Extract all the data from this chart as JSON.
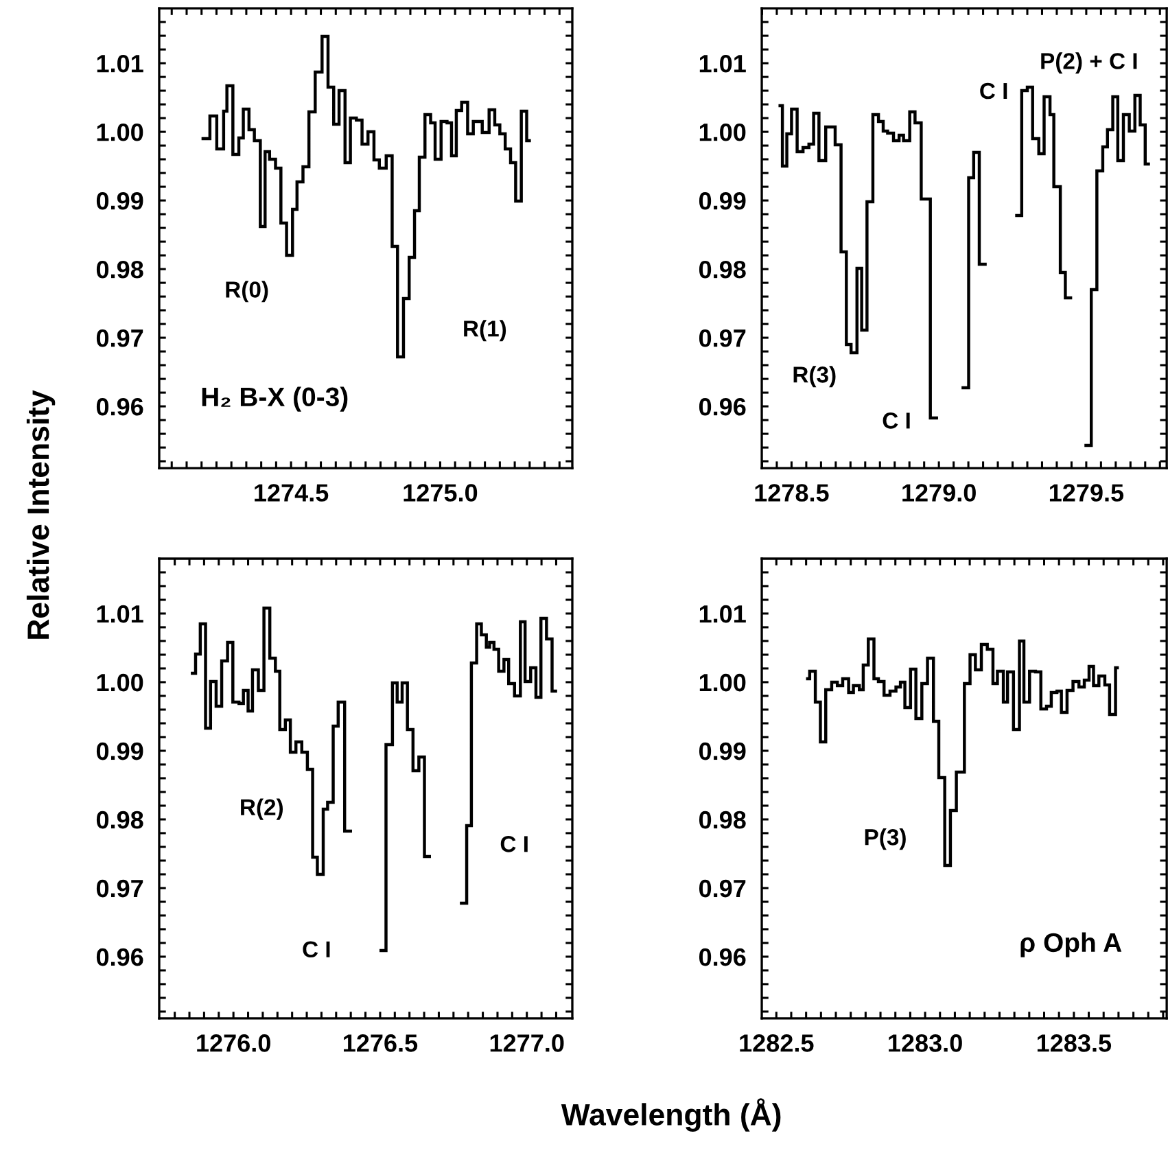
{
  "chart_data": [
    {
      "type": "step",
      "color": "#000000",
      "x": [
        1274.205,
        1274.228,
        1274.251,
        1274.274,
        1274.285,
        1274.305,
        1274.325,
        1274.34,
        1274.359,
        1274.377,
        1274.397,
        1274.413,
        1274.428,
        1274.448,
        1274.466,
        1274.485,
        1274.505,
        1274.52,
        1274.54,
        1274.56,
        1274.581,
        1274.604,
        1274.624,
        1274.643,
        1274.661,
        1274.681,
        1274.699,
        1274.719,
        1274.738,
        1274.758,
        1274.778,
        1274.796,
        1274.819,
        1274.839,
        1274.857,
        1274.877,
        1274.896,
        1274.914,
        1274.93,
        1274.949,
        1274.968,
        1274.983,
        1275.003,
        1275.023,
        1275.038,
        1275.054,
        1275.072,
        1275.092,
        1275.111,
        1275.141,
        1275.164,
        1275.183,
        1275.2,
        1275.218,
        1275.236,
        1275.253,
        1275.272,
        1275.29,
        1275.299
      ],
      "values": [
        0.999,
        1.0023,
        0.9975,
        1.003,
        1.0067,
        0.9967,
        0.9991,
        1.0033,
        1.0003,
        0.9987,
        0.9862,
        0.9971,
        0.996,
        0.9947,
        0.9867,
        0.982,
        0.9887,
        0.9927,
        0.9949,
        1.0029,
        1.0087,
        1.0139,
        1.0065,
        1.0011,
        1.006,
        0.9955,
        1.002,
        1.0017,
        0.9982,
        1.0,
        0.9959,
        0.9947,
        0.9965,
        0.9833,
        0.9672,
        0.9757,
        0.9817,
        0.9885,
        0.9963,
        1.0025,
        1.0013,
        0.996,
        1.0015,
        1.0013,
        0.9965,
        1.0031,
        1.0043,
        0.9997,
        1.0015,
        0.9999,
        1.0032,
        1.001,
        0.9997,
        0.9975,
        0.9955,
        0.9899,
        1.003,
        0.9987,
        0.9987
      ],
      "xlim": [
        1274.058,
        1275.443
      ],
      "ylim": [
        0.951,
        1.018
      ],
      "xticks": [
        {
          "value": 1274.1,
          "label": null
        },
        {
          "value": 1274.15,
          "label": null
        },
        {
          "value": 1274.2,
          "label": null
        },
        {
          "value": 1274.25,
          "label": null
        },
        {
          "value": 1274.3,
          "label": null
        },
        {
          "value": 1274.35,
          "label": null
        },
        {
          "value": 1274.4,
          "label": null
        },
        {
          "value": 1274.45,
          "label": null
        },
        1274.5,
        {
          "value": 1274.55,
          "label": null
        },
        {
          "value": 1274.6,
          "label": null
        },
        {
          "value": 1274.65,
          "label": null
        },
        {
          "value": 1274.7,
          "label": null
        },
        {
          "value": 1274.75,
          "label": null
        },
        {
          "value": 1274.8,
          "label": null
        },
        {
          "value": 1274.85,
          "label": null
        },
        {
          "value": 1274.9,
          "label": null
        },
        {
          "value": 1274.95,
          "label": null
        },
        {
          "value": 1275.0,
          "label": "1275.0"
        },
        {
          "value": 1275.05,
          "label": null
        },
        {
          "value": 1275.1,
          "label": null
        },
        {
          "value": 1275.15,
          "label": null
        },
        {
          "value": 1275.2,
          "label": null
        },
        {
          "value": 1275.25,
          "label": null
        },
        {
          "value": 1275.3,
          "label": null
        },
        {
          "value": 1275.35,
          "label": null
        },
        {
          "value": 1275.4,
          "label": null
        }
      ],
      "yticks": [
        {
          "value": 0.952,
          "label": null
        },
        {
          "value": 0.954,
          "label": null
        },
        {
          "value": 0.956,
          "label": null
        },
        {
          "value": 0.958,
          "label": null
        },
        0.96,
        {
          "value": 0.962,
          "label": null
        },
        {
          "value": 0.964,
          "label": null
        },
        {
          "value": 0.966,
          "label": null
        },
        {
          "value": 0.968,
          "label": null
        },
        0.97,
        {
          "value": 0.972,
          "label": null
        },
        {
          "value": 0.974,
          "label": null
        },
        {
          "value": 0.976,
          "label": null
        },
        {
          "value": 0.978,
          "label": null
        },
        0.98,
        {
          "value": 0.982,
          "label": null
        },
        {
          "value": 0.984,
          "label": null
        },
        {
          "value": 0.986,
          "label": null
        },
        {
          "value": 0.988,
          "label": null
        },
        0.99,
        {
          "value": 0.992,
          "label": null
        },
        {
          "value": 0.994,
          "label": null
        },
        {
          "value": 0.996,
          "label": null
        },
        {
          "value": 0.998,
          "label": null
        },
        {
          "value": 1.0,
          "label": "1.00"
        },
        {
          "value": 1.002,
          "label": null
        },
        {
          "value": 1.004,
          "label": null
        },
        {
          "value": 1.006,
          "label": null
        },
        {
          "value": 1.008,
          "label": null
        },
        1.01,
        {
          "value": 1.012,
          "label": null
        },
        {
          "value": 1.014,
          "label": null
        },
        {
          "value": 1.016,
          "label": null
        }
      ],
      "ylabel": "Relative Intensity",
      "annotations": [
        "R(0)",
        "R(1)",
        "H₂ B-X (0-3)"
      ]
    },
    {
      "type": "step",
      "color": "#000000",
      "x": [
        1278.461,
        1278.469,
        1278.484,
        1278.5,
        1278.519,
        1278.539,
        1278.559,
        1278.575,
        1278.593,
        1278.616,
        1278.648,
        1278.668,
        1278.686,
        1278.702,
        1278.722,
        1278.738,
        1278.756,
        1278.776,
        1278.795,
        1278.811,
        1278.826,
        1278.846,
        1278.865,
        1278.88,
        1278.901,
        1278.919,
        1278.94,
        1278.971,
        1278.992,
        1279.082,
        1279.101,
        1279.118,
        1279.137,
        1279.157,
        1279.264,
        1279.281,
        1279.3,
        1279.318,
        1279.339,
        1279.357,
        1279.377,
        1279.39,
        1279.412,
        1279.429,
        1279.447,
        1279.499,
        1279.517,
        1279.536,
        1279.556,
        1279.572,
        1279.59,
        1279.607,
        1279.626,
        1279.646,
        1279.665,
        1279.683,
        1279.7,
        1279.711
      ],
      "values": [
        1.0038,
        0.995,
        0.9997,
        1.0033,
        0.9971,
        0.9977,
        0.9982,
        1.0027,
        0.9958,
        1.0007,
        0.9981,
        0.9825,
        0.969,
        0.9678,
        0.9801,
        0.9711,
        0.9898,
        1.0025,
        1.0015,
        1.0001,
        0.9998,
        0.9987,
        0.9995,
        0.9987,
        1.0029,
        1.0013,
        0.9902,
        0.9583,
        null,
        0.9627,
        0.9933,
        0.997,
        0.9807,
        null,
        0.9878,
        1.006,
        1.0065,
        0.999,
        0.9968,
        1.0051,
        1.0025,
        0.992,
        0.9795,
        0.9758,
        null,
        0.9543,
        0.977,
        0.9943,
        0.9978,
        1.0003,
        1.0051,
        0.9958,
        1.0025,
        1.0001,
        1.0053,
        1.001,
        0.9953,
        0.9953
      ],
      "xlim": [
        1278.399,
        1279.773
      ],
      "ylim": [
        0.951,
        1.018
      ],
      "xticks": [
        {
          "value": 1278.4,
          "label": null
        },
        {
          "value": 1278.45,
          "label": null
        },
        1278.5,
        {
          "value": 1278.55,
          "label": null
        },
        {
          "value": 1278.6,
          "label": null
        },
        {
          "value": 1278.65,
          "label": null
        },
        {
          "value": 1278.7,
          "label": null
        },
        {
          "value": 1278.75,
          "label": null
        },
        {
          "value": 1278.8,
          "label": null
        },
        {
          "value": 1278.85,
          "label": null
        },
        {
          "value": 1278.9,
          "label": null
        },
        {
          "value": 1278.95,
          "label": null
        },
        {
          "value": 1279.0,
          "label": "1279.0"
        },
        {
          "value": 1279.05,
          "label": null
        },
        {
          "value": 1279.1,
          "label": null
        },
        {
          "value": 1279.15,
          "label": null
        },
        {
          "value": 1279.2,
          "label": null
        },
        {
          "value": 1279.25,
          "label": null
        },
        {
          "value": 1279.3,
          "label": null
        },
        {
          "value": 1279.35,
          "label": null
        },
        {
          "value": 1279.4,
          "label": null
        },
        {
          "value": 1279.45,
          "label": null
        },
        1279.5,
        {
          "value": 1279.55,
          "label": null
        },
        {
          "value": 1279.6,
          "label": null
        },
        {
          "value": 1279.65,
          "label": null
        },
        {
          "value": 1279.7,
          "label": null
        },
        {
          "value": 1279.75,
          "label": null
        }
      ],
      "yticks": [
        {
          "value": 0.952,
          "label": null
        },
        {
          "value": 0.954,
          "label": null
        },
        {
          "value": 0.956,
          "label": null
        },
        {
          "value": 0.958,
          "label": null
        },
        0.96,
        {
          "value": 0.962,
          "label": null
        },
        {
          "value": 0.964,
          "label": null
        },
        {
          "value": 0.966,
          "label": null
        },
        {
          "value": 0.968,
          "label": null
        },
        0.97,
        {
          "value": 0.972,
          "label": null
        },
        {
          "value": 0.974,
          "label": null
        },
        {
          "value": 0.976,
          "label": null
        },
        {
          "value": 0.978,
          "label": null
        },
        0.98,
        {
          "value": 0.982,
          "label": null
        },
        {
          "value": 0.984,
          "label": null
        },
        {
          "value": 0.986,
          "label": null
        },
        {
          "value": 0.988,
          "label": null
        },
        0.99,
        {
          "value": 0.992,
          "label": null
        },
        {
          "value": 0.994,
          "label": null
        },
        {
          "value": 0.996,
          "label": null
        },
        {
          "value": 0.998,
          "label": null
        },
        {
          "value": 1.0,
          "label": "1.00"
        },
        {
          "value": 1.002,
          "label": null
        },
        {
          "value": 1.004,
          "label": null
        },
        {
          "value": 1.006,
          "label": null
        },
        {
          "value": 1.008,
          "label": null
        },
        1.01,
        {
          "value": 1.012,
          "label": null
        },
        {
          "value": 1.014,
          "label": null
        },
        {
          "value": 1.016,
          "label": null
        }
      ],
      "annotations": [
        "R(3)",
        "C I",
        "C I",
        "P(2) + C I"
      ]
    },
    {
      "type": "step",
      "color": "#000000",
      "x": [
        1275.86,
        1275.871,
        1275.887,
        1275.905,
        1275.922,
        1275.941,
        1275.96,
        1275.98,
        1275.998,
        1276.019,
        1276.034,
        1276.05,
        1276.065,
        1276.085,
        1276.104,
        1276.124,
        1276.143,
        1276.158,
        1276.177,
        1276.194,
        1276.213,
        1276.233,
        1276.252,
        1276.27,
        1276.286,
        1276.306,
        1276.321,
        1276.34,
        1276.357,
        1276.379,
        1276.399,
        1276.503,
        1276.52,
        1276.542,
        1276.558,
        1276.575,
        1276.593,
        1276.612,
        1276.632,
        1276.651,
        1276.668,
        1276.777,
        1276.795,
        1276.811,
        1276.829,
        1276.845,
        1276.862,
        1276.873,
        1276.888,
        1276.904,
        1276.922,
        1276.938,
        1276.958,
        1276.978,
        1276.994,
        1277.013,
        1277.031,
        1277.048,
        1277.067,
        1277.086,
        1277.098
      ],
      "values": [
        1.0013,
        1.0041,
        1.0085,
        0.9933,
        1.0001,
        0.9965,
        1.0031,
        1.0058,
        0.9971,
        0.9969,
        0.9988,
        0.9958,
        1.0018,
        0.9988,
        1.0108,
        1.0035,
        1.0016,
        0.9931,
        0.9945,
        0.9898,
        0.9913,
        0.9898,
        0.9873,
        0.9745,
        0.972,
        0.9815,
        0.9825,
        0.9936,
        0.9971,
        0.9783,
        null,
        0.9609,
        0.9909,
        0.9999,
        0.9971,
        0.9999,
        0.9931,
        0.9871,
        0.9891,
        0.9746,
        null,
        0.9678,
        0.9791,
        1.0028,
        1.0085,
        1.0069,
        1.0051,
        1.0058,
        1.0048,
        1.0016,
        1.0033,
        0.9998,
        0.998,
        1.0088,
        1.0001,
        1.0021,
        0.9978,
        1.0093,
        1.0063,
        0.9987,
        0.9987
      ],
      "xlim": [
        1275.747,
        1277.155
      ],
      "ylim": [
        0.951,
        1.018
      ],
      "xticks": [
        {
          "value": 1275.8,
          "label": null
        },
        {
          "value": 1275.85,
          "label": null
        },
        {
          "value": 1275.9,
          "label": null
        },
        {
          "value": 1275.95,
          "label": null
        },
        {
          "value": 1276.0,
          "label": "1276.0"
        },
        {
          "value": 1276.05,
          "label": null
        },
        {
          "value": 1276.1,
          "label": null
        },
        {
          "value": 1276.15,
          "label": null
        },
        {
          "value": 1276.2,
          "label": null
        },
        {
          "value": 1276.25,
          "label": null
        },
        {
          "value": 1276.3,
          "label": null
        },
        {
          "value": 1276.35,
          "label": null
        },
        {
          "value": 1276.4,
          "label": null
        },
        {
          "value": 1276.45,
          "label": null
        },
        1276.5,
        {
          "value": 1276.55,
          "label": null
        },
        {
          "value": 1276.6,
          "label": null
        },
        {
          "value": 1276.65,
          "label": null
        },
        {
          "value": 1276.7,
          "label": null
        },
        {
          "value": 1276.75,
          "label": null
        },
        {
          "value": 1276.8,
          "label": null
        },
        {
          "value": 1276.85,
          "label": null
        },
        {
          "value": 1276.9,
          "label": null
        },
        {
          "value": 1276.95,
          "label": null
        },
        {
          "value": 1277.0,
          "label": "1277.0"
        },
        {
          "value": 1277.05,
          "label": null
        },
        {
          "value": 1277.1,
          "label": null
        }
      ],
      "yticks": [
        {
          "value": 0.952,
          "label": null
        },
        {
          "value": 0.954,
          "label": null
        },
        {
          "value": 0.956,
          "label": null
        },
        {
          "value": 0.958,
          "label": null
        },
        0.96,
        {
          "value": 0.962,
          "label": null
        },
        {
          "value": 0.964,
          "label": null
        },
        {
          "value": 0.966,
          "label": null
        },
        {
          "value": 0.968,
          "label": null
        },
        0.97,
        {
          "value": 0.972,
          "label": null
        },
        {
          "value": 0.974,
          "label": null
        },
        {
          "value": 0.976,
          "label": null
        },
        {
          "value": 0.978,
          "label": null
        },
        0.98,
        {
          "value": 0.982,
          "label": null
        },
        {
          "value": 0.984,
          "label": null
        },
        {
          "value": 0.986,
          "label": null
        },
        {
          "value": 0.988,
          "label": null
        },
        0.99,
        {
          "value": 0.992,
          "label": null
        },
        {
          "value": 0.994,
          "label": null
        },
        {
          "value": 0.996,
          "label": null
        },
        {
          "value": 0.998,
          "label": null
        },
        {
          "value": 1.0,
          "label": "1.00"
        },
        {
          "value": 1.002,
          "label": null
        },
        {
          "value": 1.004,
          "label": null
        },
        {
          "value": 1.006,
          "label": null
        },
        {
          "value": 1.008,
          "label": null
        },
        1.01,
        {
          "value": 1.012,
          "label": null
        },
        {
          "value": 1.014,
          "label": null
        },
        {
          "value": 1.016,
          "label": null
        }
      ],
      "xlabel": "Wavelength (Å)",
      "annotations": [
        "R(2)",
        "C I",
        "C I"
      ]
    },
    {
      "type": "step",
      "color": "#000000",
      "x": [
        1282.605,
        1282.612,
        1282.631,
        1282.648,
        1282.666,
        1282.686,
        1282.705,
        1282.723,
        1282.743,
        1282.759,
        1282.779,
        1282.792,
        1282.809,
        1282.828,
        1282.843,
        1282.862,
        1282.882,
        1282.902,
        1282.917,
        1282.932,
        1282.951,
        1282.969,
        1282.989,
        1283.008,
        1283.028,
        1283.046,
        1283.066,
        1283.085,
        1283.105,
        1283.132,
        1283.151,
        1283.169,
        1283.189,
        1283.209,
        1283.228,
        1283.243,
        1283.263,
        1283.277,
        1283.297,
        1283.317,
        1283.332,
        1283.351,
        1283.371,
        1283.389,
        1283.408,
        1283.424,
        1283.443,
        1283.458,
        1283.477,
        1283.497,
        1283.517,
        1283.535,
        1283.551,
        1283.566,
        1283.584,
        1283.604,
        1283.62,
        1283.64,
        1283.646
      ],
      "values": [
        1.0005,
        1.0016,
        0.9971,
        0.9913,
        0.9989,
        1.0,
        0.9995,
        1.0005,
        0.9985,
        0.9995,
        0.9989,
        1.0025,
        1.0063,
        1.0005,
        1.0001,
        0.9981,
        0.9987,
        0.9993,
        1.0,
        0.9963,
        1.0019,
        0.9947,
        0.9998,
        1.0035,
        0.9943,
        0.9861,
        0.9733,
        0.9813,
        0.9869,
        0.9998,
        1.004,
        1.0018,
        1.0055,
        1.0048,
        0.9998,
        1.0016,
        0.9971,
        1.0015,
        0.9931,
        1.006,
        0.9971,
        1.0016,
        1.0015,
        0.9961,
        0.9965,
        0.9985,
        0.9987,
        0.9956,
        0.9988,
        1.0001,
        0.9993,
        1.0003,
        1.0023,
        0.9995,
        1.0009,
        0.9996,
        0.9953,
        1.0021,
        1.0021
      ],
      "xlim": [
        1282.451,
        1283.812
      ],
      "ylim": [
        0.951,
        1.018
      ],
      "xticks": [
        1282.5,
        {
          "value": 1282.55,
          "label": null
        },
        {
          "value": 1282.6,
          "label": null
        },
        {
          "value": 1282.65,
          "label": null
        },
        {
          "value": 1282.7,
          "label": null
        },
        {
          "value": 1282.75,
          "label": null
        },
        {
          "value": 1282.8,
          "label": null
        },
        {
          "value": 1282.85,
          "label": null
        },
        {
          "value": 1282.9,
          "label": null
        },
        {
          "value": 1282.95,
          "label": null
        },
        {
          "value": 1283.0,
          "label": "1283.0"
        },
        {
          "value": 1283.05,
          "label": null
        },
        {
          "value": 1283.1,
          "label": null
        },
        {
          "value": 1283.15,
          "label": null
        },
        {
          "value": 1283.2,
          "label": null
        },
        {
          "value": 1283.25,
          "label": null
        },
        {
          "value": 1283.3,
          "label": null
        },
        {
          "value": 1283.35,
          "label": null
        },
        {
          "value": 1283.4,
          "label": null
        },
        {
          "value": 1283.45,
          "label": null
        },
        1283.5,
        {
          "value": 1283.55,
          "label": null
        },
        {
          "value": 1283.6,
          "label": null
        },
        {
          "value": 1283.65,
          "label": null
        },
        {
          "value": 1283.7,
          "label": null
        },
        {
          "value": 1283.75,
          "label": null
        },
        {
          "value": 1283.8,
          "label": null
        }
      ],
      "yticks": [
        {
          "value": 0.952,
          "label": null
        },
        {
          "value": 0.954,
          "label": null
        },
        {
          "value": 0.956,
          "label": null
        },
        {
          "value": 0.958,
          "label": null
        },
        0.96,
        {
          "value": 0.962,
          "label": null
        },
        {
          "value": 0.964,
          "label": null
        },
        {
          "value": 0.966,
          "label": null
        },
        {
          "value": 0.968,
          "label": null
        },
        0.97,
        {
          "value": 0.972,
          "label": null
        },
        {
          "value": 0.974,
          "label": null
        },
        {
          "value": 0.976,
          "label": null
        },
        {
          "value": 0.978,
          "label": null
        },
        0.98,
        {
          "value": 0.982,
          "label": null
        },
        {
          "value": 0.984,
          "label": null
        },
        {
          "value": 0.986,
          "label": null
        },
        {
          "value": 0.988,
          "label": null
        },
        0.99,
        {
          "value": 0.992,
          "label": null
        },
        {
          "value": 0.994,
          "label": null
        },
        {
          "value": 0.996,
          "label": null
        },
        {
          "value": 0.998,
          "label": null
        },
        {
          "value": 1.0,
          "label": "1.00"
        },
        {
          "value": 1.002,
          "label": null
        },
        {
          "value": 1.004,
          "label": null
        },
        {
          "value": 1.006,
          "label": null
        },
        {
          "value": 1.008,
          "label": null
        },
        1.01,
        {
          "value": 1.012,
          "label": null
        },
        {
          "value": 1.014,
          "label": null
        },
        {
          "value": 1.016,
          "label": null
        }
      ],
      "annotations": [
        "P(3)",
        "ρ Oph A"
      ]
    }
  ]
}
